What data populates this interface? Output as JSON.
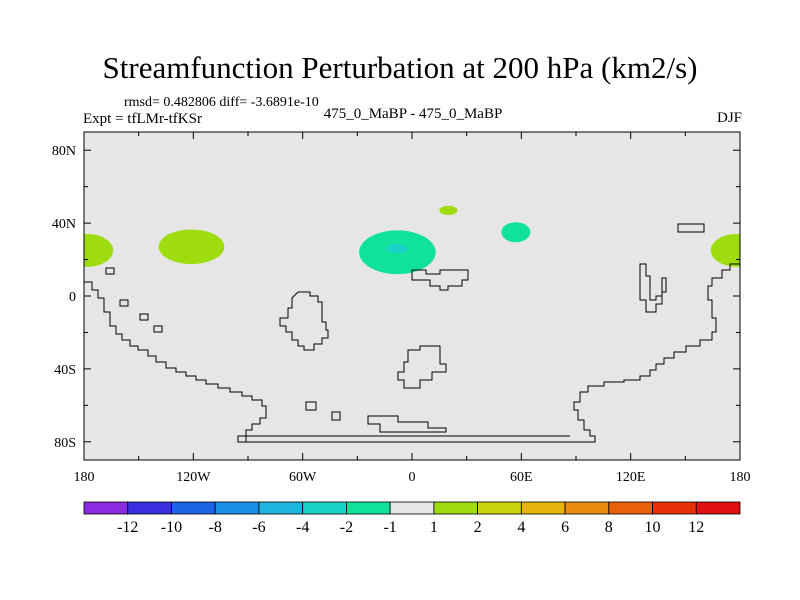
{
  "chart_data": {
    "type": "heatmap",
    "title": "Streamfunction Perturbation at 200 hPa (km2/s)",
    "stats": "rmsd= 0.482806  diff= -3.6891e-10",
    "left_label": "Expt = tfLMr-tfKSr",
    "center_label": "475_0_MaBP - 475_0_MaBP",
    "right_label": "DJF",
    "x_ticks": [
      {
        "lon": -180,
        "label": "180"
      },
      {
        "lon": -120,
        "label": "120W"
      },
      {
        "lon": -60,
        "label": "60W"
      },
      {
        "lon": 0,
        "label": "0"
      },
      {
        "lon": 60,
        "label": "60E"
      },
      {
        "lon": 120,
        "label": "120E"
      },
      {
        "lon": 180,
        "label": "180"
      }
    ],
    "y_ticks": [
      {
        "lat": 80,
        "label": "80N"
      },
      {
        "lat": 40,
        "label": "40N"
      },
      {
        "lat": 0,
        "label": "0"
      },
      {
        "lat": -40,
        "label": "40S"
      },
      {
        "lat": -80,
        "label": "80S"
      }
    ],
    "xlim": [
      -180,
      180
    ],
    "ylim": [
      -90,
      90
    ],
    "colorbar": {
      "labels": [
        "-12",
        "-10",
        "-8",
        "-6",
        "-4",
        "-2",
        "-1",
        "1",
        "2",
        "4",
        "6",
        "8",
        "10",
        "12"
      ],
      "colors": [
        "#8a2be2",
        "#3a2ee0",
        "#1e64e6",
        "#1a8fe6",
        "#20b4e0",
        "#18d2c8",
        "#10e29a",
        "#e6e6e6",
        "#9edc10",
        "#c8d410",
        "#e6b40a",
        "#e88a0a",
        "#e8600a",
        "#e8300a",
        "#e01010"
      ]
    },
    "anomalies": [
      {
        "lon": -178,
        "lat": 25,
        "rlon": 14,
        "rlat": 9,
        "value": 1.5,
        "color": "#9edc10"
      },
      {
        "lon": 178,
        "lat": 25,
        "rlon": 14,
        "rlat": 9,
        "value": 1.5,
        "color": "#9edc10"
      },
      {
        "lon": -121,
        "lat": 27,
        "rlon": 18,
        "rlat": 9.5,
        "value": 1.5,
        "color": "#9edc10"
      },
      {
        "lon": -8,
        "lat": 24,
        "rlon": 21,
        "rlat": 12,
        "value": -1.5,
        "color": "#10e29a"
      },
      {
        "lon": -8,
        "lat": 26,
        "rlon": 6,
        "rlat": 2.5,
        "value": -2.5,
        "color": "#18d2c8"
      },
      {
        "lon": 57,
        "lat": 35,
        "rlon": 8,
        "rlat": 5.5,
        "value": -1.5,
        "color": "#10e29a"
      },
      {
        "lon": 20,
        "lat": 47,
        "rlon": 5,
        "rlat": 2.5,
        "value": 1.5,
        "color": "#9edc10"
      }
    ]
  }
}
